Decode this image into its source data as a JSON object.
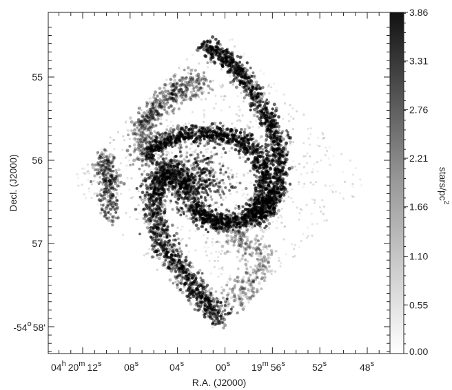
{
  "chart_data": {
    "type": "heatmap",
    "title": "",
    "xlabel": "R.A.  (J2000)",
    "ylabel": "Decl.  (J2000)",
    "colorbar_label": "stars/pc",
    "colorbar_label_sup": "2",
    "colorbar_range": [
      0.0,
      3.86
    ],
    "colorbar_ticks": [
      "0.00",
      "0.55",
      "1.10",
      "1.66",
      "2.21",
      "2.76",
      "3.31",
      "3.86"
    ],
    "colormap": "greyscale (white = 0, black = max)",
    "y_ticks": [
      {
        "value": 55,
        "label": "55",
        "prefix": "",
        "sup": "",
        "suffix": ""
      },
      {
        "value": 56,
        "label": "56",
        "prefix": "",
        "sup": "",
        "suffix": ""
      },
      {
        "value": 57,
        "label": "57",
        "prefix": "",
        "sup": "",
        "suffix": ""
      },
      {
        "value": 58,
        "label": "58",
        "prefix": "-54",
        "sup": "o",
        "suffix": "'"
      }
    ],
    "x_ticks": [
      {
        "value": 12,
        "label": "04",
        "sup": "h",
        "label2": "20",
        "sup2": "m",
        "label3": "12",
        "sup3": "s"
      },
      {
        "value": 8,
        "label": "08",
        "sup": "s"
      },
      {
        "value": 4,
        "label": "04",
        "sup": "s"
      },
      {
        "value": 0,
        "label": "00",
        "sup": "s"
      },
      {
        "value": -4,
        "label": "19",
        "sup": "m",
        "label2": "56",
        "sup2": "s"
      },
      {
        "value": -8,
        "label": "52",
        "sup": "s"
      },
      {
        "value": -12,
        "label": "48",
        "sup": "s"
      }
    ],
    "grid": false,
    "legend": "colorbar right"
  }
}
